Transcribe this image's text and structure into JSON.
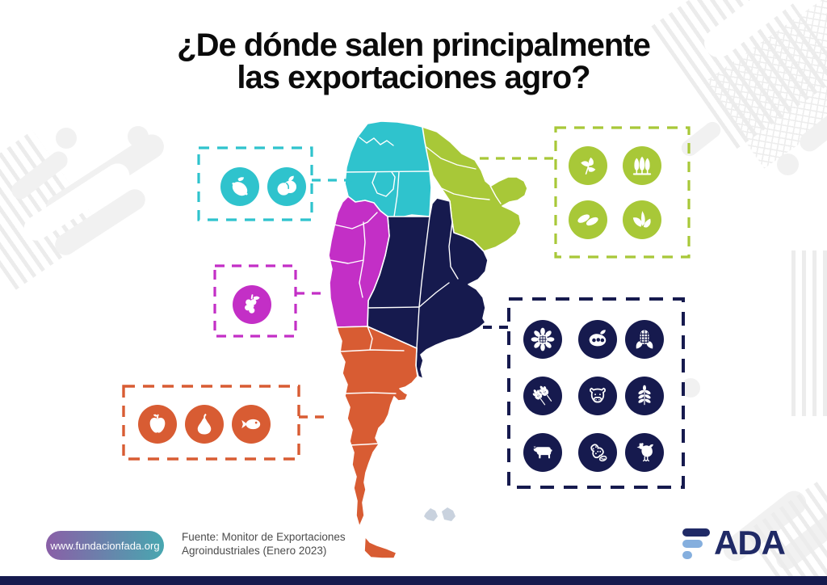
{
  "title": {
    "line1": "¿De dónde salen principalmente",
    "line2": "las exportaciones agro?"
  },
  "colors": {
    "cyan": "#2fc3cd",
    "green": "#a8c838",
    "magenta": "#c32fc6",
    "navy": "#161a4e",
    "orange": "#d85c33",
    "falklands_gray": "#c9d2de",
    "bottom_bar": "#161a4e",
    "pill_gradient_start": "#8a5fa7",
    "pill_gradient_end": "#48a7b0",
    "logo_navy": "#202a66",
    "logo_lightblue": "#85afde",
    "title_black": "#0b0b0b",
    "source_gray": "#4c4c4c"
  },
  "legend_boxes": [
    {
      "id": "northwest-citrus",
      "color_key": "cyan",
      "icons": [
        "lemon-icon",
        "plums-icon"
      ]
    },
    {
      "id": "northeast",
      "color_key": "green",
      "icons": [
        "yerba-mate-icon",
        "forestry-trees-icon",
        "tea-leaves-icon",
        "tobacco-leaves-icon"
      ]
    },
    {
      "id": "cuyo",
      "color_key": "magenta",
      "icons": [
        "grapes-icon"
      ]
    },
    {
      "id": "patagonia",
      "color_key": "orange",
      "icons": [
        "apple-icon",
        "pear-icon",
        "fish-icon"
      ]
    },
    {
      "id": "pampeana",
      "color_key": "navy",
      "icons": [
        "sunflower-icon",
        "soybean-icon",
        "corn-icon",
        "wheat-icon",
        "dairy-cow-icon",
        "barley-icon",
        "beef-cattle-icon",
        "peanut-icon",
        "chicken-icon"
      ]
    }
  ],
  "footer": {
    "website": "www.fundacionfada.org",
    "source_line1": "Fuente: Monitor de Exportaciones",
    "source_line2": "Agroindustriales (Enero 2023)",
    "logo_name": "FADA",
    "logo_letters": "ADA"
  }
}
